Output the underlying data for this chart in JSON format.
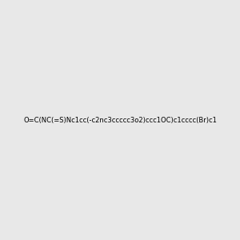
{
  "smiles": "O=C(NC(=S)Nc1cc(-c2nc3ccccc3o2)ccc1OC)c1cccc(Br)c1",
  "img_size": [
    300,
    300
  ],
  "background": "#e8e8e8"
}
